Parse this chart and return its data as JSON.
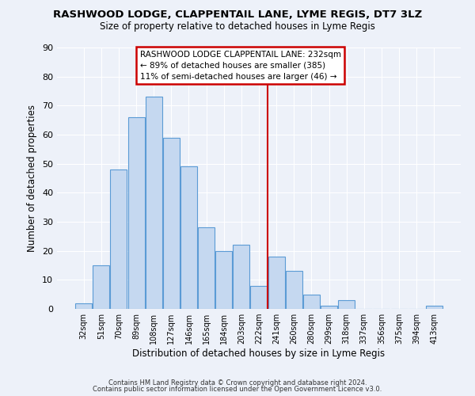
{
  "title": "RASHWOOD LODGE, CLAPPENTAIL LANE, LYME REGIS, DT7 3LZ",
  "subtitle": "Size of property relative to detached houses in Lyme Regis",
  "xlabel": "Distribution of detached houses by size in Lyme Regis",
  "ylabel": "Number of detached properties",
  "categories": [
    "32sqm",
    "51sqm",
    "70sqm",
    "89sqm",
    "108sqm",
    "127sqm",
    "146sqm",
    "165sqm",
    "184sqm",
    "203sqm",
    "222sqm",
    "241sqm",
    "260sqm",
    "280sqm",
    "299sqm",
    "318sqm",
    "337sqm",
    "356sqm",
    "375sqm",
    "394sqm",
    "413sqm"
  ],
  "values": [
    2,
    15,
    48,
    66,
    73,
    59,
    49,
    28,
    20,
    22,
    8,
    18,
    13,
    5,
    1,
    3,
    0,
    0,
    0,
    0,
    1
  ],
  "vline_pos": 10.5,
  "annotation_text": "RASHWOOD LODGE CLAPPENTAIL LANE: 232sqm\n← 89% of detached houses are smaller (385)\n11% of semi-detached houses are larger (46) →",
  "bar_color": "#c5d8f0",
  "bar_edge_color": "#5b9bd5",
  "vline_color": "#cc0000",
  "annotation_box_edgecolor": "#cc0000",
  "footer_line1": "Contains HM Land Registry data © Crown copyright and database right 2024.",
  "footer_line2": "Contains public sector information licensed under the Open Government Licence v3.0.",
  "bg_color": "#edf1f9",
  "grid_color": "#ffffff",
  "ylim": [
    0,
    90
  ],
  "yticks": [
    0,
    10,
    20,
    30,
    40,
    50,
    60,
    70,
    80,
    90
  ]
}
